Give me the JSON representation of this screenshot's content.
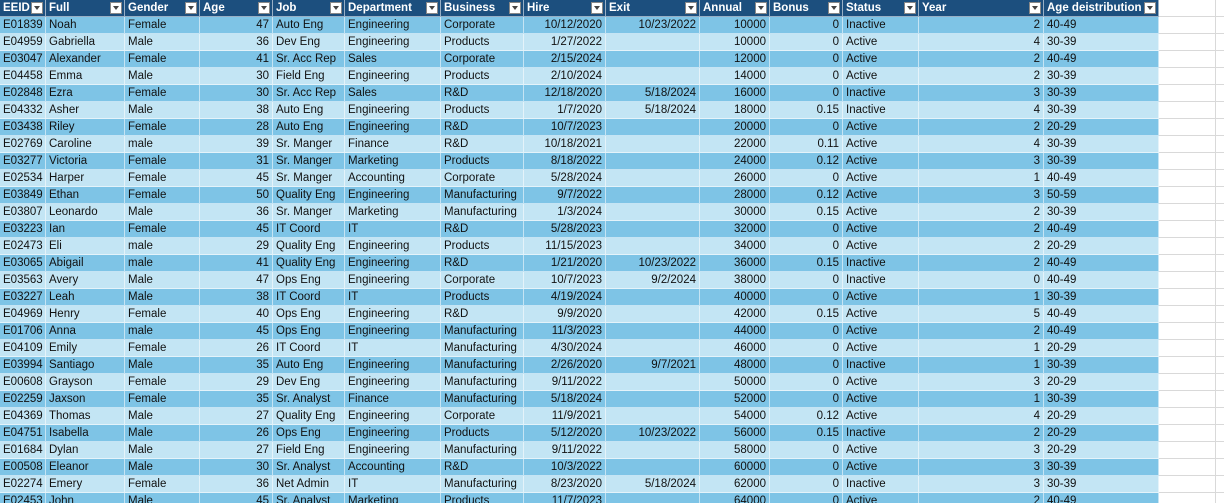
{
  "table": {
    "header": [
      "EEID",
      "Full",
      "Gender",
      "Age",
      "Job",
      "Department",
      "Business",
      "Hire",
      "Exit",
      "Annual",
      "Bonus",
      "Status",
      "Year",
      "Age deistribution"
    ],
    "rows": [
      [
        "E01839",
        "Noah",
        "Female",
        47,
        "Auto Eng",
        "Engineering",
        "Corporate",
        "10/12/2020",
        "10/23/2022",
        10000,
        0,
        "Inactive",
        2,
        "40-49"
      ],
      [
        "E04959",
        "Gabriella",
        "Male",
        36,
        "Dev Eng",
        "Engineering",
        "Products",
        "1/27/2022",
        null,
        10000,
        0,
        "Active",
        4,
        "30-39"
      ],
      [
        "E03047",
        "Alexander",
        "Female",
        41,
        "Sr. Acc Rep",
        "Sales",
        "Corporate",
        "2/15/2024",
        null,
        12000,
        0,
        "Active",
        2,
        "40-49"
      ],
      [
        "E04458",
        "Emma",
        "Male",
        30,
        "Field Eng",
        "Engineering",
        "Products",
        "2/10/2024",
        null,
        14000,
        0,
        "Active",
        2,
        "30-39"
      ],
      [
        "E02848",
        "Ezra",
        "Female",
        30,
        "Sr. Acc Rep",
        "Sales",
        "R&D",
        "12/18/2020",
        "5/18/2024",
        16000,
        0,
        "Inactive",
        3,
        "30-39"
      ],
      [
        "E04332",
        "Asher",
        "Male",
        38,
        "Auto Eng",
        "Engineering",
        "Products",
        "1/7/2020",
        "5/18/2024",
        18000,
        0.15,
        "Inactive",
        4,
        "30-39"
      ],
      [
        "E03438",
        "Riley",
        "Female",
        28,
        "Auto Eng",
        "Engineering",
        "R&D",
        "10/7/2023",
        null,
        20000,
        0,
        "Active",
        2,
        "20-29"
      ],
      [
        "E02769",
        "Caroline",
        "male",
        39,
        "Sr. Manger",
        "Finance",
        "R&D",
        "10/18/2021",
        null,
        22000,
        0.11,
        "Active",
        4,
        "30-39"
      ],
      [
        "E03277",
        "Victoria",
        "Female",
        31,
        "Sr. Manger",
        "Marketing",
        "Products",
        "8/18/2022",
        null,
        24000,
        0.12,
        "Active",
        3,
        "30-39"
      ],
      [
        "E02534",
        "Harper",
        "Female",
        45,
        "Sr. Manger",
        "Accounting",
        "Corporate",
        "5/28/2024",
        null,
        26000,
        0,
        "Active",
        1,
        "40-49"
      ],
      [
        "E03849",
        "Ethan",
        "Female",
        50,
        "Quality Eng",
        "Engineering",
        "Manufacturing",
        "9/7/2022",
        null,
        28000,
        0.12,
        "Active",
        3,
        "50-59"
      ],
      [
        "E03807",
        "Leonardo",
        "Male",
        36,
        "Sr. Manger",
        "Marketing",
        "Manufacturing",
        "1/3/2024",
        null,
        30000,
        0.15,
        "Active",
        2,
        "30-39"
      ],
      [
        "E03223",
        "Ian",
        "Female",
        45,
        "IT Coord",
        "IT",
        "R&D",
        "5/28/2023",
        null,
        32000,
        0,
        "Active",
        2,
        "40-49"
      ],
      [
        "E02473",
        "Eli",
        "male",
        29,
        "Quality Eng",
        "Engineering",
        "Products",
        "11/15/2023",
        null,
        34000,
        0,
        "Active",
        2,
        "20-29"
      ],
      [
        "E03065",
        "Abigail",
        "male",
        41,
        "Quality Eng",
        "Engineering",
        "R&D",
        "1/21/2020",
        "10/23/2022",
        36000,
        0.15,
        "Inactive",
        2,
        "40-49"
      ],
      [
        "E03563",
        "Avery",
        "Male",
        47,
        "Ops Eng",
        "Engineering",
        "Corporate",
        "10/7/2023",
        "9/2/2024",
        38000,
        0,
        "Inactive",
        0,
        "40-49"
      ],
      [
        "E03227",
        "Leah",
        "Male",
        38,
        "IT Coord",
        "IT",
        "Products",
        "4/19/2024",
        null,
        40000,
        0,
        "Active",
        1,
        "30-39"
      ],
      [
        "E04969",
        "Henry",
        "Female",
        40,
        "Ops Eng",
        "Engineering",
        "R&D",
        "9/9/2020",
        null,
        42000,
        0.15,
        "Active",
        5,
        "40-49"
      ],
      [
        "E01706",
        "Anna",
        "male",
        45,
        "Ops Eng",
        "Engineering",
        "Manufacturing",
        "11/3/2023",
        null,
        44000,
        0,
        "Active",
        2,
        "40-49"
      ],
      [
        "E04109",
        "Emily",
        "Female",
        26,
        "IT Coord",
        "IT",
        "Manufacturing",
        "4/30/2024",
        null,
        46000,
        0,
        "Active",
        1,
        "20-29"
      ],
      [
        "E03994",
        "Santiago",
        "Male",
        35,
        "Auto Eng",
        "Engineering",
        "Manufacturing",
        "2/26/2020",
        "9/7/2021",
        48000,
        0,
        "Inactive",
        1,
        "30-39"
      ],
      [
        "E00608",
        "Grayson",
        "Female",
        29,
        "Dev Eng",
        "Engineering",
        "Manufacturing",
        "9/11/2022",
        null,
        50000,
        0,
        "Active",
        3,
        "20-29"
      ],
      [
        "E02259",
        "Jaxson",
        "Female",
        35,
        "Sr. Analyst",
        "Finance",
        "Manufacturing",
        "5/18/2024",
        null,
        52000,
        0,
        "Active",
        1,
        "30-39"
      ],
      [
        "E04369",
        "Thomas",
        "Male",
        27,
        "Quality Eng",
        "Engineering",
        "Corporate",
        "11/9/2021",
        null,
        54000,
        0.12,
        "Active",
        4,
        "20-29"
      ],
      [
        "E04751",
        "Isabella",
        "Male",
        26,
        "Ops Eng",
        "Engineering",
        "Products",
        "5/12/2020",
        "10/23/2022",
        56000,
        0.15,
        "Inactive",
        2,
        "20-29"
      ],
      [
        "E01684",
        "Dylan",
        "Male",
        27,
        "Field Eng",
        "Engineering",
        "Manufacturing",
        "9/11/2022",
        null,
        58000,
        0,
        "Active",
        3,
        "20-29"
      ],
      [
        "E00508",
        "Eleanor",
        "Male",
        30,
        "Sr. Analyst",
        "Accounting",
        "R&D",
        "10/3/2022",
        null,
        60000,
        0,
        "Active",
        3,
        "30-39"
      ],
      [
        "E02274",
        "Emery",
        "Female",
        36,
        "Net Admin",
        "IT",
        "Manufacturing",
        "8/23/2020",
        "5/18/2024",
        62000,
        0,
        "Inactive",
        3,
        "30-39"
      ],
      [
        "E02453",
        "John",
        "Male",
        45,
        "Sr. Analyst",
        "Marketing",
        "Products",
        "11/7/2023",
        null,
        64000,
        0,
        "Active",
        2,
        "40-49"
      ]
    ]
  }
}
